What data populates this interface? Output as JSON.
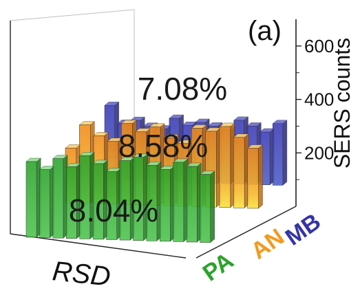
{
  "chart_data": {
    "type": "bar",
    "subtype": "3d-bar-waterfall",
    "panel_label": "(a)",
    "zlabel": "SERS counts",
    "zticks": [
      200,
      400,
      600
    ],
    "zlim": [
      0,
      700
    ],
    "xlabel": "RSD",
    "grid": false,
    "colors": {
      "PA": "#2aa32a",
      "AN": "#f39a1e",
      "MB": "#3434a8"
    },
    "series": [
      {
        "name": "MB",
        "values": [
          680,
          520,
          550,
          500,
          480,
          580,
          520,
          550,
          520,
          490,
          580,
          530,
          480,
          560
        ],
        "rsd_label": "7.08%",
        "color_name": "blue"
      },
      {
        "name": "AN",
        "values": [
          210,
          300,
          260,
          240,
          310,
          280,
          300,
          260,
          240,
          300,
          290,
          310,
          270,
          230
        ],
        "rsd_label": "8.58%",
        "color_name": "orange"
      },
      {
        "name": "PA",
        "values": [
          200,
          180,
          210,
          190,
          220,
          200,
          180,
          210,
          220,
          200,
          190,
          210,
          200,
          180
        ],
        "rsd_label": "8.04%",
        "color_name": "green"
      }
    ]
  }
}
